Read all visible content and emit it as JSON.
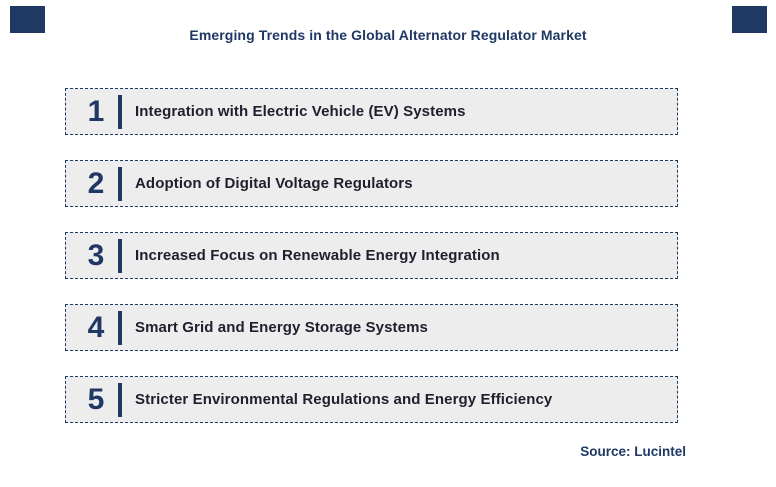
{
  "title": "Emerging Trends in the Global Alternator Regulator Market",
  "items": [
    {
      "number": "1",
      "label": "Integration with Electric Vehicle (EV) Systems"
    },
    {
      "number": "2",
      "label": "Adoption of Digital Voltage Regulators"
    },
    {
      "number": "3",
      "label": "Increased Focus on Renewable Energy Integration"
    },
    {
      "number": "4",
      "label": "Smart Grid and Energy Storage Systems"
    },
    {
      "number": "5",
      "label": "Stricter Environmental Regulations and Energy Efficiency"
    }
  ],
  "source": "Source: Lucintel",
  "colors": {
    "navy": "#1F3864",
    "box_background": "#EDEDED",
    "item_text": "#1F1F2E",
    "page_background": "#FFFFFF"
  }
}
